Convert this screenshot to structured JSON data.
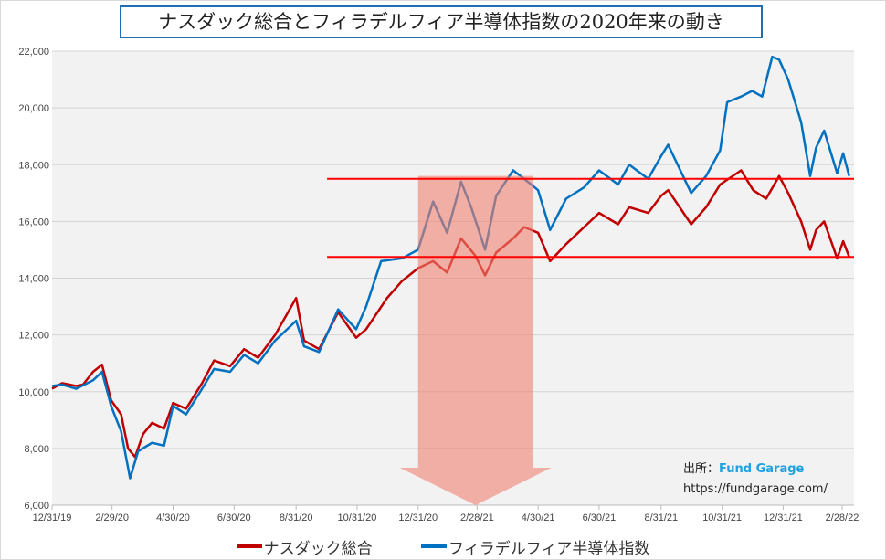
{
  "chart_data": {
    "type": "line",
    "title": "ナスダック総合とフィラデルフィア半導体指数の2020年来の動き",
    "xlabel": "",
    "ylabel": "",
    "ylim": [
      6000,
      22000
    ],
    "y_ticks": [
      "6,000",
      "8,000",
      "10,000",
      "12,000",
      "14,000",
      "16,000",
      "18,000",
      "20,000",
      "22,000"
    ],
    "y_tick_values": [
      6000,
      8000,
      10000,
      12000,
      14000,
      16000,
      18000,
      20000,
      22000
    ],
    "x_range": [
      "2019-12-31",
      "2022-03-10"
    ],
    "x_ticks": [
      {
        "date": "2019-12-31",
        "label": "12/31/19"
      },
      {
        "date": "2020-02-29",
        "label": "2/29/20"
      },
      {
        "date": "2020-04-30",
        "label": "4/30/20"
      },
      {
        "date": "2020-06-30",
        "label": "6/30/20"
      },
      {
        "date": "2020-08-31",
        "label": "8/31/20"
      },
      {
        "date": "2020-10-31",
        "label": "10/31/20"
      },
      {
        "date": "2020-12-31",
        "label": "12/31/20"
      },
      {
        "date": "2021-02-28",
        "label": "2/28/21"
      },
      {
        "date": "2021-04-30",
        "label": "4/30/21"
      },
      {
        "date": "2021-06-30",
        "label": "6/30/21"
      },
      {
        "date": "2021-08-31",
        "label": "8/31/21"
      },
      {
        "date": "2021-10-31",
        "label": "10/31/21"
      },
      {
        "date": "2021-12-31",
        "label": "12/31/21"
      },
      {
        "date": "2022-02-28",
        "label": "2/28/22"
      }
    ],
    "grid": true,
    "legend_position": "bottom",
    "series": [
      {
        "name": "ナスダック総合",
        "color": "#c00000",
        "points": [
          [
            "2019-12-31",
            10100
          ],
          [
            "2020-01-10",
            10300
          ],
          [
            "2020-01-24",
            10200
          ],
          [
            "2020-01-31",
            10250
          ],
          [
            "2020-02-10",
            10700
          ],
          [
            "2020-02-19",
            10950
          ],
          [
            "2020-02-28",
            9700
          ],
          [
            "2020-03-09",
            9200
          ],
          [
            "2020-03-16",
            8000
          ],
          [
            "2020-03-23",
            7700
          ],
          [
            "2020-03-31",
            8500
          ],
          [
            "2020-04-09",
            8900
          ],
          [
            "2020-04-21",
            8700
          ],
          [
            "2020-04-30",
            9600
          ],
          [
            "2020-05-13",
            9400
          ],
          [
            "2020-05-29",
            10300
          ],
          [
            "2020-06-10",
            11100
          ],
          [
            "2020-06-26",
            10900
          ],
          [
            "2020-07-10",
            11500
          ],
          [
            "2020-07-24",
            11200
          ],
          [
            "2020-08-10",
            12000
          ],
          [
            "2020-08-31",
            13300
          ],
          [
            "2020-09-08",
            11800
          ],
          [
            "2020-09-23",
            11500
          ],
          [
            "2020-10-12",
            12800
          ],
          [
            "2020-10-30",
            11900
          ],
          [
            "2020-11-09",
            12200
          ],
          [
            "2020-11-30",
            13300
          ],
          [
            "2020-12-15",
            13900
          ],
          [
            "2020-12-31",
            14350
          ],
          [
            "2021-01-15",
            14600
          ],
          [
            "2021-01-29",
            14200
          ],
          [
            "2021-02-12",
            15400
          ],
          [
            "2021-02-26",
            14800
          ],
          [
            "2021-03-08",
            14100
          ],
          [
            "2021-03-19",
            14900
          ],
          [
            "2021-04-05",
            15400
          ],
          [
            "2021-04-16",
            15800
          ],
          [
            "2021-04-30",
            15600
          ],
          [
            "2021-05-12",
            14600
          ],
          [
            "2021-05-28",
            15200
          ],
          [
            "2021-06-15",
            15800
          ],
          [
            "2021-06-30",
            16300
          ],
          [
            "2021-07-19",
            15900
          ],
          [
            "2021-07-30",
            16500
          ],
          [
            "2021-08-18",
            16300
          ],
          [
            "2021-08-31",
            16900
          ],
          [
            "2021-09-07",
            17100
          ],
          [
            "2021-09-30",
            15900
          ],
          [
            "2021-10-15",
            16500
          ],
          [
            "2021-10-29",
            17300
          ],
          [
            "2021-11-19",
            17800
          ],
          [
            "2021-12-01",
            17100
          ],
          [
            "2021-12-14",
            16800
          ],
          [
            "2021-12-27",
            17600
          ],
          [
            "2022-01-05",
            17000
          ],
          [
            "2022-01-18",
            16000
          ],
          [
            "2022-01-27",
            15000
          ],
          [
            "2022-02-02",
            15700
          ],
          [
            "2022-02-10",
            16000
          ],
          [
            "2022-02-23",
            14700
          ],
          [
            "2022-03-01",
            15300
          ],
          [
            "2022-03-07",
            14750
          ]
        ]
      },
      {
        "name": "フィラデルフィア半導体指数",
        "color": "#0070c0",
        "points": [
          [
            "2019-12-31",
            10200
          ],
          [
            "2020-01-10",
            10250
          ],
          [
            "2020-01-24",
            10100
          ],
          [
            "2020-02-10",
            10400
          ],
          [
            "2020-02-19",
            10700
          ],
          [
            "2020-02-28",
            9500
          ],
          [
            "2020-03-09",
            8600
          ],
          [
            "2020-03-18",
            6950
          ],
          [
            "2020-03-26",
            7900
          ],
          [
            "2020-04-09",
            8200
          ],
          [
            "2020-04-21",
            8100
          ],
          [
            "2020-04-30",
            9500
          ],
          [
            "2020-05-13",
            9200
          ],
          [
            "2020-05-29",
            10100
          ],
          [
            "2020-06-10",
            10800
          ],
          [
            "2020-06-26",
            10700
          ],
          [
            "2020-07-10",
            11300
          ],
          [
            "2020-07-24",
            11000
          ],
          [
            "2020-08-10",
            11800
          ],
          [
            "2020-08-31",
            12500
          ],
          [
            "2020-09-08",
            11600
          ],
          [
            "2020-09-23",
            11400
          ],
          [
            "2020-10-12",
            12900
          ],
          [
            "2020-10-30",
            12200
          ],
          [
            "2020-11-09",
            13000
          ],
          [
            "2020-11-24",
            14600
          ],
          [
            "2020-12-15",
            14700
          ],
          [
            "2020-12-31",
            15000
          ],
          [
            "2021-01-15",
            16700
          ],
          [
            "2021-01-29",
            15600
          ],
          [
            "2021-02-12",
            17400
          ],
          [
            "2021-02-22",
            16500
          ],
          [
            "2021-03-08",
            15000
          ],
          [
            "2021-03-19",
            16900
          ],
          [
            "2021-04-05",
            17800
          ],
          [
            "2021-04-16",
            17500
          ],
          [
            "2021-04-30",
            17100
          ],
          [
            "2021-05-12",
            15700
          ],
          [
            "2021-05-28",
            16800
          ],
          [
            "2021-06-15",
            17200
          ],
          [
            "2021-06-30",
            17800
          ],
          [
            "2021-07-19",
            17300
          ],
          [
            "2021-07-30",
            18000
          ],
          [
            "2021-08-18",
            17500
          ],
          [
            "2021-08-31",
            18300
          ],
          [
            "2021-09-07",
            18700
          ],
          [
            "2021-09-30",
            17000
          ],
          [
            "2021-10-15",
            17600
          ],
          [
            "2021-10-29",
            18500
          ],
          [
            "2021-11-05",
            20200
          ],
          [
            "2021-11-19",
            20400
          ],
          [
            "2021-11-30",
            20600
          ],
          [
            "2021-12-10",
            20400
          ],
          [
            "2021-12-20",
            21800
          ],
          [
            "2021-12-27",
            21700
          ],
          [
            "2022-01-05",
            21000
          ],
          [
            "2022-01-18",
            19500
          ],
          [
            "2022-01-27",
            17600
          ],
          [
            "2022-02-02",
            18600
          ],
          [
            "2022-02-10",
            19200
          ],
          [
            "2022-02-23",
            17700
          ],
          [
            "2022-03-01",
            18400
          ],
          [
            "2022-03-07",
            17600
          ]
        ]
      }
    ],
    "annotations": {
      "horizontal_lines": [
        {
          "value": 17500,
          "from": "2020-10-01",
          "color": "#ff0000"
        },
        {
          "value": 14750,
          "from": "2020-10-01",
          "color": "#ff0000"
        }
      ],
      "down_arrow": {
        "from_date": "2020-12-31",
        "to_date": "2021-04-25",
        "top_value": 17600,
        "color": "#f08070"
      }
    }
  },
  "source": {
    "label": "出所：",
    "brand": "Fund Garage",
    "url": "https://fundgarage.com/"
  }
}
